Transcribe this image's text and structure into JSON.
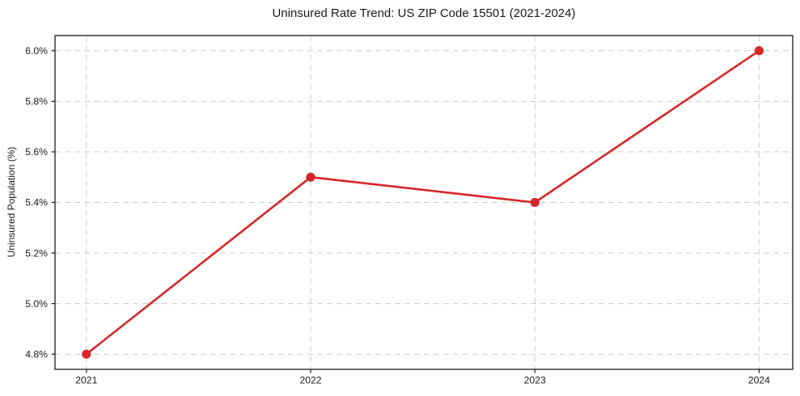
{
  "chart_data": {
    "type": "line",
    "title": "Uninsured Rate Trend: US ZIP Code 15501 (2021-2024)",
    "xlabel": "",
    "ylabel": "Uninsured Population (%)",
    "x": [
      2021,
      2022,
      2023,
      2024
    ],
    "xtick_labels": [
      "2021",
      "2022",
      "2023",
      "2024"
    ],
    "series": [
      {
        "name": "Uninsured rate",
        "values": [
          4.8,
          5.5,
          5.4,
          6.0
        ]
      }
    ],
    "yticks": [
      4.8,
      5.0,
      5.2,
      5.4,
      5.6,
      5.8,
      6.0
    ],
    "ytick_labels": [
      "4.8%",
      "5.0%",
      "5.2%",
      "5.4%",
      "5.6%",
      "5.8%",
      "6.0%"
    ],
    "xlim": [
      2020.86,
      2024.15
    ],
    "ylim": [
      4.74,
      6.06
    ],
    "grid": {
      "visible": true,
      "style": "dashed",
      "axes": "both"
    },
    "legend": "none",
    "marker": "circle",
    "colors": {
      "line": "#d62728",
      "marker": "#d62728",
      "grid": "#cccccc",
      "spine": "#1a1a1a",
      "tick_text": "#1a1a1a",
      "background": "#ffffff"
    }
  }
}
